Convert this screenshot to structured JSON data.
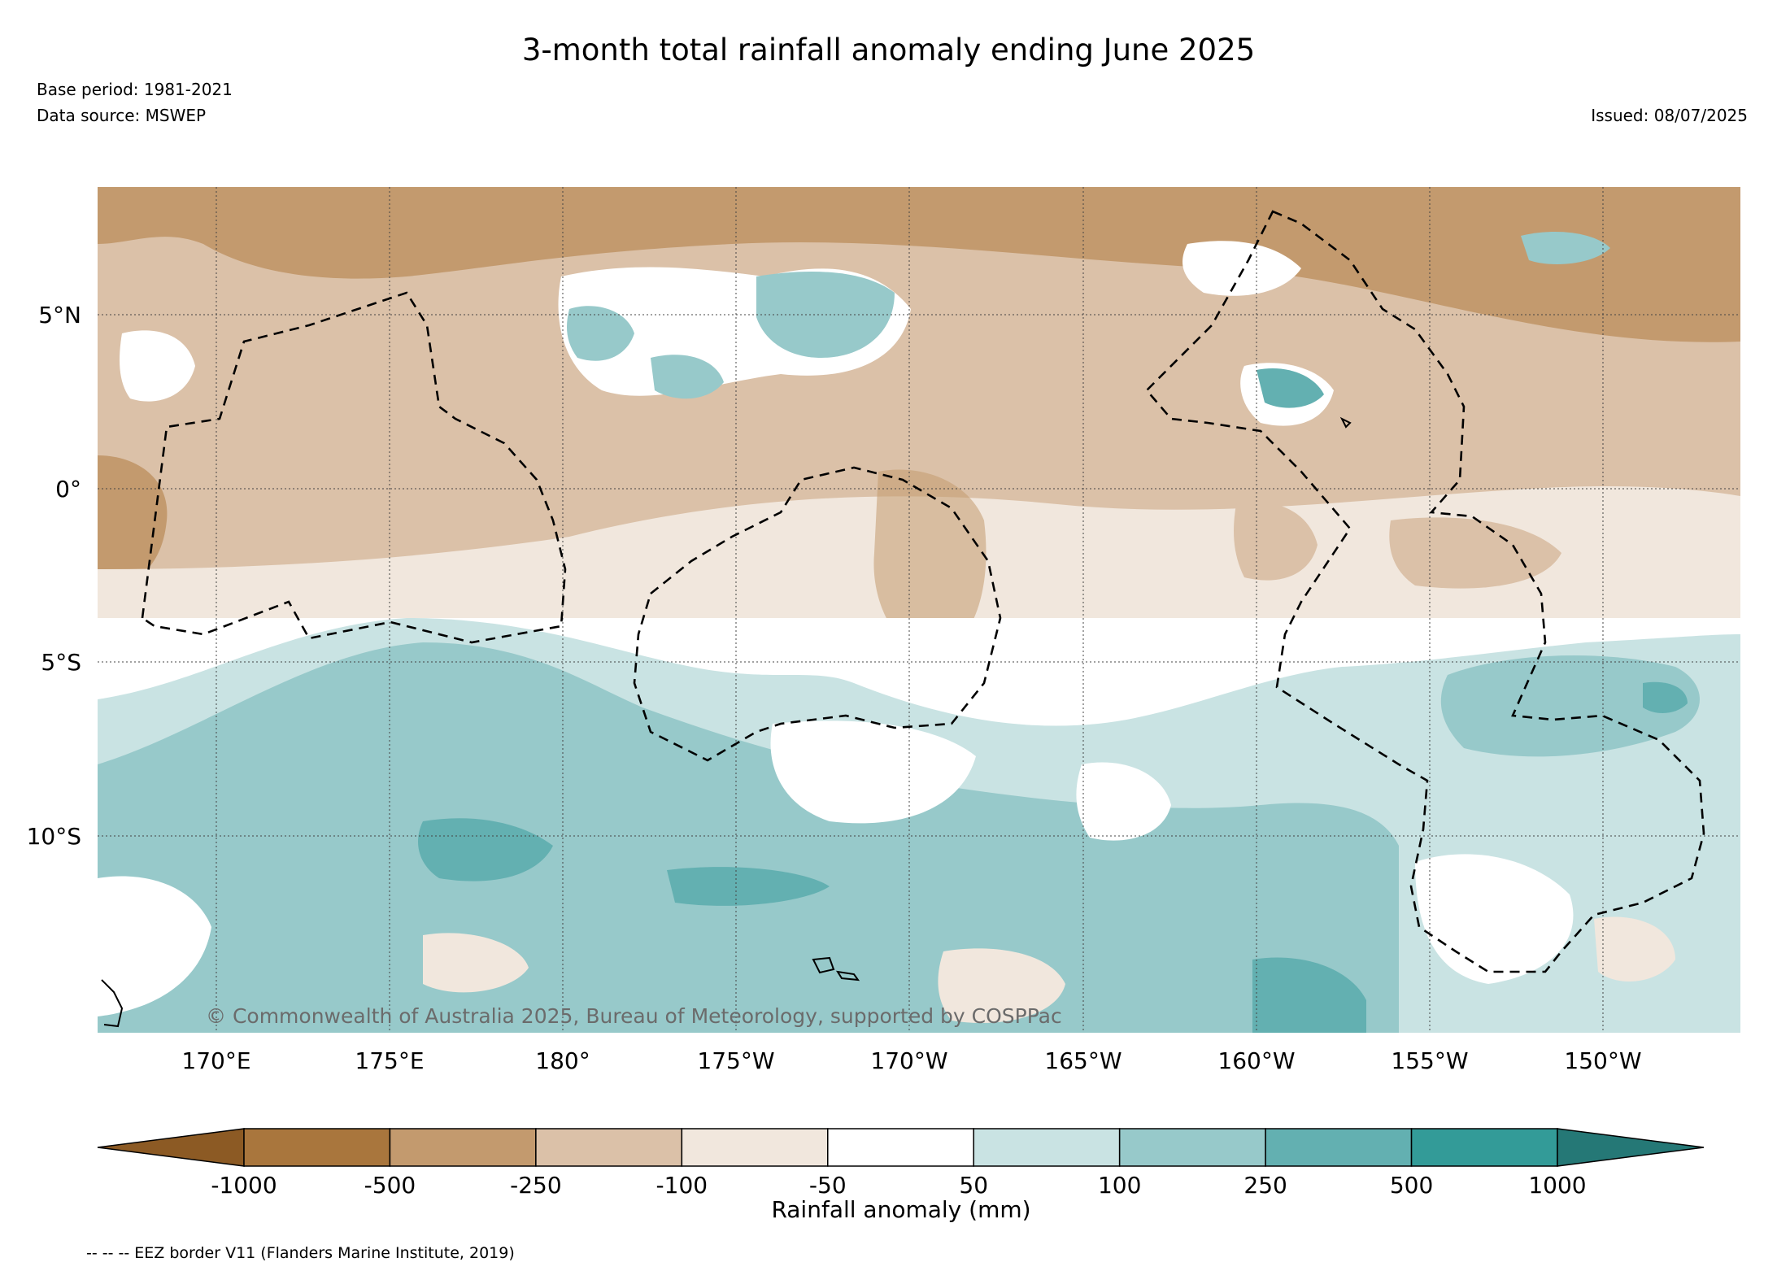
{
  "title": "3-month total rainfall anomaly ending June 2025",
  "base_period": "Base period: 1981-2021",
  "data_source": "Data source: MSWEP",
  "issued": "Issued: 08/07/2025",
  "copyright": "© Commonwealth of Australia 2025, Bureau of Meteorology, supported by COSPPac",
  "map": {
    "lat_ticks": [
      "5°N",
      "0°",
      "5°S",
      "10°S"
    ],
    "lon_ticks": [
      "170°E",
      "175°E",
      "180°",
      "175°W",
      "170°W",
      "165°W",
      "160°W",
      "155°W",
      "150°W"
    ],
    "ocean_color": "#ffffff",
    "grid": true
  },
  "colorbar": {
    "label": "Rainfall anomaly (mm)",
    "tick_labels": [
      "-1000",
      "-500",
      "-250",
      "-100",
      "-50",
      "50",
      "100",
      "250",
      "500",
      "1000"
    ],
    "colors": [
      "#8c5a24",
      "#a9763d",
      "#c39a6e",
      "#dbc1a8",
      "#f1e7dd",
      "#ffffff",
      "#c9e3e3",
      "#97c9ca",
      "#63b0b1",
      "#339b98",
      "#257876"
    ]
  },
  "legend_note": "-- -- -- EEZ border V11 (Flanders Marine Institute, 2019)"
}
